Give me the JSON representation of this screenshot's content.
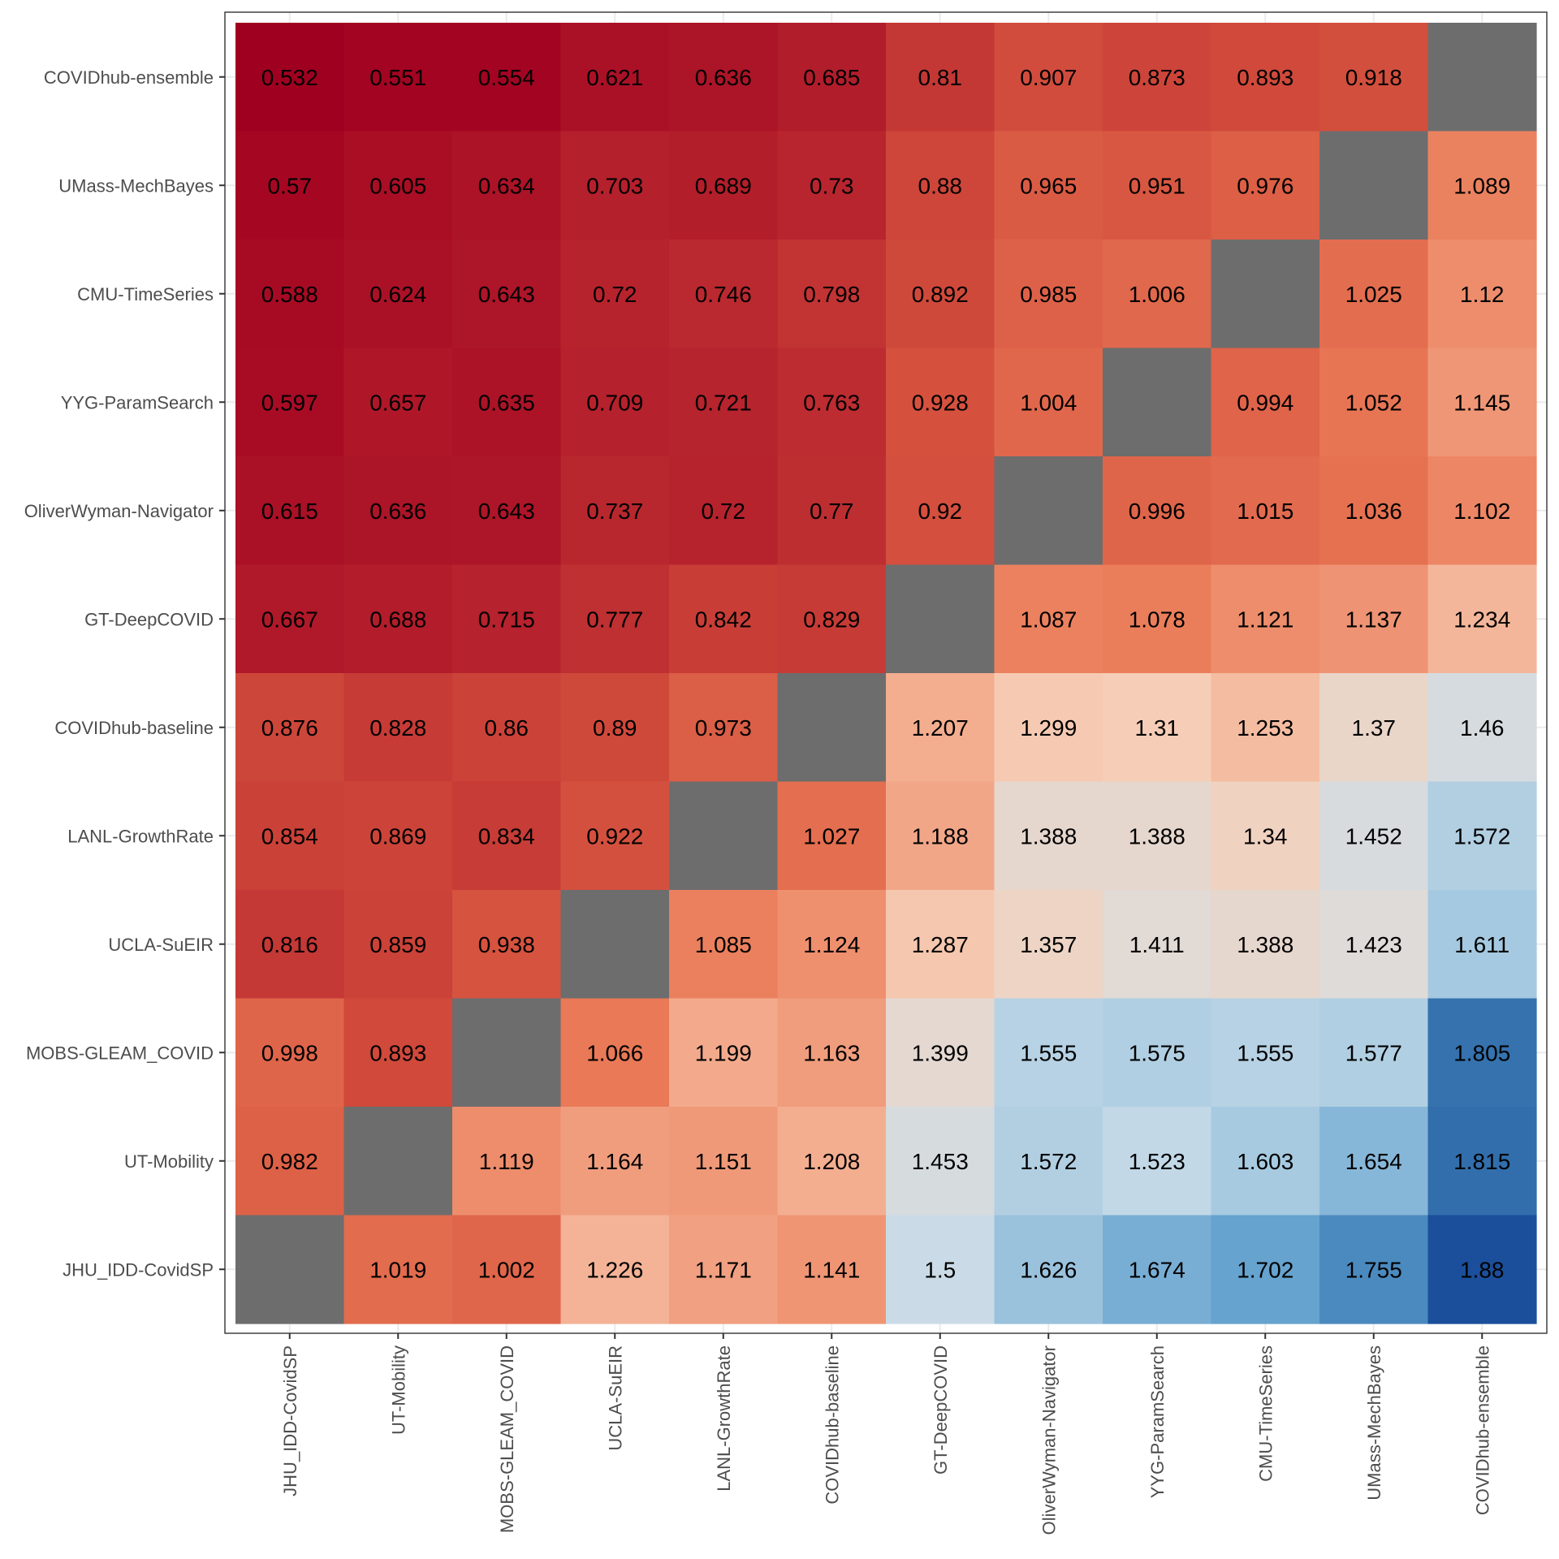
{
  "chart_data": {
    "type": "heatmap",
    "title": "",
    "xlabel": "",
    "ylabel": "",
    "grid": true,
    "legend": "none",
    "x_categories": [
      "JHU_IDD-CovidSP",
      "UT-Mobility",
      "MOBS-GLEAM_COVID",
      "UCLA-SuEIR",
      "LANL-GrowthRate",
      "COVIDhub-baseline",
      "GT-DeepCOVID",
      "OliverWyman-Navigator",
      "YYG-ParamSearch",
      "CMU-TimeSeries",
      "UMass-MechBayes",
      "COVIDhub-ensemble"
    ],
    "y_categories_top_to_bottom": [
      "COVIDhub-ensemble",
      "UMass-MechBayes",
      "CMU-TimeSeries",
      "YYG-ParamSearch",
      "OliverWyman-Navigator",
      "GT-DeepCOVID",
      "COVIDhub-baseline",
      "LANL-GrowthRate",
      "UCLA-SuEIR",
      "MOBS-GLEAM_COVID",
      "UT-Mobility",
      "JHU_IDD-CovidSP"
    ],
    "values": [
      [
        "0.532",
        "0.551",
        "0.554",
        "0.621",
        "0.636",
        "0.685",
        "0.81",
        "0.907",
        "0.873",
        "0.893",
        "0.918",
        null
      ],
      [
        "0.57",
        "0.605",
        "0.634",
        "0.703",
        "0.689",
        "0.73",
        "0.88",
        "0.965",
        "0.951",
        "0.976",
        null,
        "1.089"
      ],
      [
        "0.588",
        "0.624",
        "0.643",
        "0.72",
        "0.746",
        "0.798",
        "0.892",
        "0.985",
        "1.006",
        null,
        "1.025",
        "1.12"
      ],
      [
        "0.597",
        "0.657",
        "0.635",
        "0.709",
        "0.721",
        "0.763",
        "0.928",
        "1.004",
        null,
        "0.994",
        "1.052",
        "1.145"
      ],
      [
        "0.615",
        "0.636",
        "0.643",
        "0.737",
        "0.72",
        "0.77",
        "0.92",
        null,
        "0.996",
        "1.015",
        "1.036",
        "1.102"
      ],
      [
        "0.667",
        "0.688",
        "0.715",
        "0.777",
        "0.842",
        "0.829",
        null,
        "1.087",
        "1.078",
        "1.121",
        "1.137",
        "1.234"
      ],
      [
        "0.876",
        "0.828",
        "0.86",
        "0.89",
        "0.973",
        null,
        "1.207",
        "1.299",
        "1.31",
        "1.253",
        "1.37",
        "1.46"
      ],
      [
        "0.854",
        "0.869",
        "0.834",
        "0.922",
        null,
        "1.027",
        "1.188",
        "1.388",
        "1.388",
        "1.34",
        "1.452",
        "1.572"
      ],
      [
        "0.816",
        "0.859",
        "0.938",
        null,
        "1.085",
        "1.124",
        "1.287",
        "1.357",
        "1.411",
        "1.388",
        "1.423",
        "1.611"
      ],
      [
        "0.998",
        "0.893",
        null,
        "1.066",
        "1.199",
        "1.163",
        "1.399",
        "1.555",
        "1.575",
        "1.555",
        "1.577",
        "1.805"
      ],
      [
        "0.982",
        null,
        "1.119",
        "1.164",
        "1.151",
        "1.208",
        "1.453",
        "1.572",
        "1.523",
        "1.603",
        "1.654",
        "1.815"
      ],
      [
        null,
        "1.019",
        "1.002",
        "1.226",
        "1.171",
        "1.141",
        "1.5",
        "1.626",
        "1.674",
        "1.702",
        "1.755",
        "1.88"
      ]
    ],
    "color_scale": {
      "type": "diverging",
      "low_value": 0.532,
      "mid_value": 1.2,
      "high_value": 1.88,
      "stops": [
        {
          "t": 0.0,
          "color": "#a00020"
        },
        {
          "t": 0.15,
          "color": "#b8262e"
        },
        {
          "t": 0.3,
          "color": "#d6533f"
        },
        {
          "t": 0.4,
          "color": "#ea7b58"
        },
        {
          "t": 0.5,
          "color": "#f3ad8f"
        },
        {
          "t": 0.58,
          "color": "#f6cfb8"
        },
        {
          "t": 0.66,
          "color": "#dfdbd8"
        },
        {
          "t": 0.72,
          "color": "#c9dbe7"
        },
        {
          "t": 0.8,
          "color": "#a5c9e0"
        },
        {
          "t": 0.88,
          "color": "#5b9ccb"
        },
        {
          "t": 0.94,
          "color": "#3775b0"
        },
        {
          "t": 1.0,
          "color": "#1b4f9b"
        }
      ],
      "na_color": "#6d6d6d"
    }
  }
}
